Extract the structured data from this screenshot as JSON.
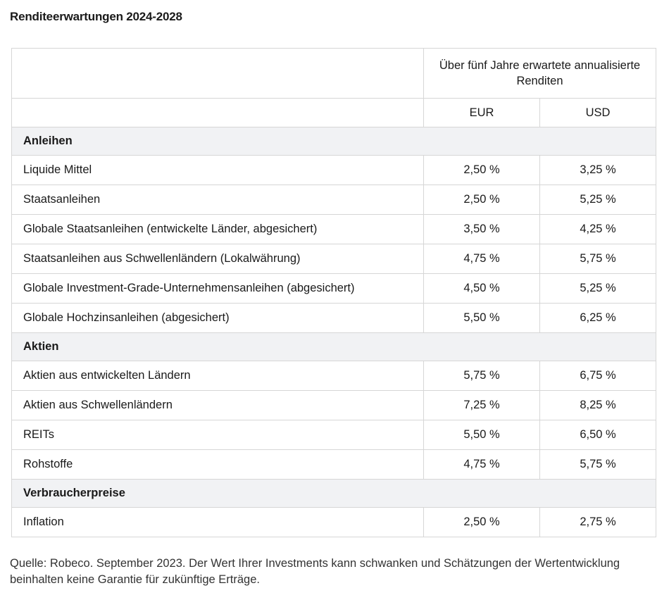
{
  "title": "Renditeerwartungen 2024-2028",
  "table": {
    "header_span": "Über fünf Jahre erwartete annualisierte Renditen",
    "currency_eur": "EUR",
    "currency_usd": "USD",
    "sections": [
      {
        "name": "Anleihen",
        "rows": [
          {
            "label": "Liquide Mittel",
            "eur": "2,50 %",
            "usd": "3,25 %"
          },
          {
            "label": "Staatsanleihen",
            "eur": "2,50 %",
            "usd": "5,25 %"
          },
          {
            "label": "Globale Staatsanleihen (entwickelte Länder, abgesichert)",
            "eur": "3,50 %",
            "usd": "4,25 %"
          },
          {
            "label": "Staatsanleihen aus Schwellenländern (Lokalwährung)",
            "eur": "4,75 %",
            "usd": "5,75 %"
          },
          {
            "label": "Globale Investment-Grade-Unternehmensanleihen (abgesichert)",
            "eur": "4,50 %",
            "usd": "5,25 %"
          },
          {
            "label": "Globale Hochzinsanleihen (abgesichert)",
            "eur": "5,50 %",
            "usd": "6,25 %"
          }
        ]
      },
      {
        "name": "Aktien",
        "rows": [
          {
            "label": "Aktien aus entwickelten Ländern",
            "eur": "5,75 %",
            "usd": "6,75 %"
          },
          {
            "label": "Aktien aus Schwellenländern",
            "eur": "7,25 %",
            "usd": "8,25 %"
          },
          {
            "label": "REITs",
            "eur": "5,50 %",
            "usd": "6,50 %"
          },
          {
            "label": "Rohstoffe",
            "eur": "4,75 %",
            "usd": "5,75 %"
          }
        ]
      },
      {
        "name": "Verbraucherpreise",
        "rows": [
          {
            "label": "Inflation",
            "eur": "2,50 %",
            "usd": "2,75 %"
          }
        ]
      }
    ]
  },
  "source_note": "Quelle: Robeco. September 2023. Der Wert Ihrer Investments kann schwanken und Schätzungen der Wertentwicklung beinhalten keine Garantie für zukünftige Erträge."
}
